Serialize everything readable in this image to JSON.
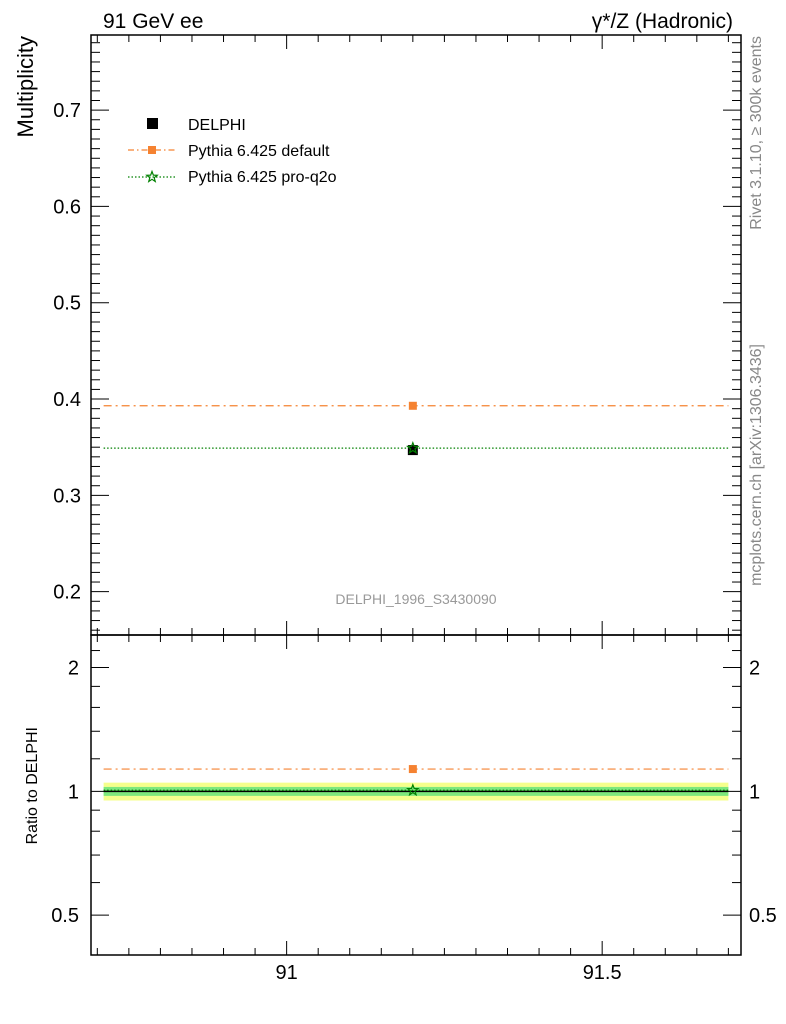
{
  "header": {
    "left": "91 GeV ee",
    "right": "γ*/Z (Hadronic)"
  },
  "side_text": {
    "rivet": "Rivet 3.1.10, ≥ 300k events",
    "mcplots": "mcplots.cern.ch [arXiv:1306.3436]"
  },
  "analysis_id": "DELPHI_1996_S3430090",
  "colors": {
    "data": "#000000",
    "pythia_default": "#f58231",
    "pythia_pro_q2o": "#008000",
    "band_inner": "#7de87d",
    "band_outer": "#f5ff8c"
  },
  "chart_data": [
    {
      "type": "scatter",
      "panel": "main",
      "ylabel": "Multiplicity",
      "xlim": [
        90.69,
        91.72
      ],
      "ylim": [
        0.155,
        0.778
      ],
      "yticks": [
        0.2,
        0.3,
        0.4,
        0.5,
        0.6,
        0.7
      ],
      "ytick_labels": [
        "0.2",
        "0.3",
        "0.4",
        "0.5",
        "0.6",
        "0.7"
      ],
      "legend_position": "top-left",
      "grid": false,
      "series": [
        {
          "name": "DELPHI",
          "style": "marker",
          "marker": "square",
          "x": [
            91.2
          ],
          "y": [
            0.347
          ]
        },
        {
          "name": "Pythia 6.425 default",
          "style": "dashdot",
          "marker": "square",
          "x": [
            91.2
          ],
          "y": [
            0.393
          ],
          "line_x": [
            90.71,
            91.7
          ]
        },
        {
          "name": "Pythia 6.425 pro-q2o",
          "style": "dotted",
          "marker": "star",
          "x": [
            91.2
          ],
          "y": [
            0.349
          ],
          "line_x": [
            90.71,
            91.7
          ]
        }
      ]
    },
    {
      "type": "scatter",
      "panel": "ratio",
      "ylabel": "Ratio to DELPHI",
      "xlim": [
        90.69,
        91.72
      ],
      "ylim": [
        0.4,
        2.4
      ],
      "yscale": "log",
      "yticks": [
        0.5,
        1,
        2
      ],
      "ytick_labels": [
        "0.5",
        "1",
        "2"
      ],
      "xticks": [
        91,
        91.5
      ],
      "xtick_labels": [
        "91",
        "91.5"
      ],
      "band": {
        "inner": [
          0.975,
          1.025
        ],
        "outer": [
          0.95,
          1.05
        ]
      },
      "series": [
        {
          "name": "DELPHI",
          "style": "solid",
          "y": [
            1.0
          ]
        },
        {
          "name": "Pythia 6.425 default",
          "style": "dashdot",
          "marker": "square",
          "x": [
            91.2
          ],
          "y": [
            1.133
          ]
        },
        {
          "name": "Pythia 6.425 pro-q2o",
          "style": "dotted",
          "marker": "star",
          "x": [
            91.2
          ],
          "y": [
            1.006
          ]
        }
      ]
    }
  ]
}
